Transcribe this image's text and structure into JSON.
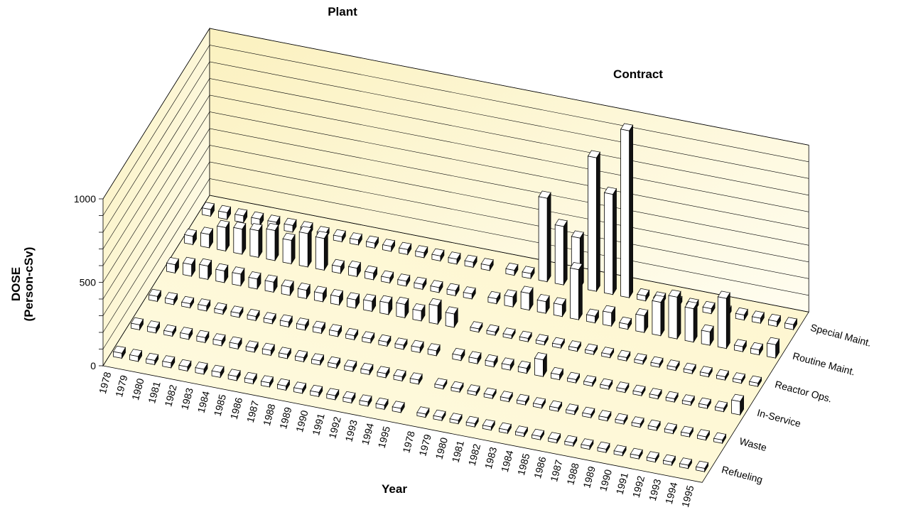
{
  "chart_data": {
    "type": "bar3d",
    "ylabel": [
      "DOSE",
      "(Person-cSv)"
    ],
    "xlabel": "Year",
    "ylim": [
      0,
      1000
    ],
    "yticks": [
      0,
      500,
      1000
    ],
    "minor_yticks": [
      100,
      200,
      300,
      400,
      600,
      700,
      800,
      900
    ],
    "grid": true,
    "categories": [
      "1978",
      "1979",
      "1980",
      "1981",
      "1982",
      "1983",
      "1984",
      "1985",
      "1986",
      "1987",
      "1988",
      "1989",
      "1990",
      "1991",
      "1992",
      "1993",
      "1994",
      "1995"
    ],
    "groups": [
      {
        "name": "Plant",
        "series": [
          {
            "name": "Refueling",
            "values": [
              30,
              30,
              25,
              30,
              25,
              30,
              30,
              25,
              25,
              25,
              25,
              25,
              25,
              25,
              25,
              25,
              25,
              25
            ]
          },
          {
            "name": "Waste",
            "values": [
              30,
              30,
              25,
              30,
              30,
              30,
              30,
              25,
              30,
              25,
              25,
              25,
              25,
              25,
              25,
              25,
              25,
              25
            ]
          },
          {
            "name": "In-Service",
            "values": [
              30,
              30,
              25,
              30,
              25,
              25,
              25,
              25,
              30,
              30,
              30,
              30,
              25,
              25,
              25,
              25,
              30,
              30
            ]
          },
          {
            "name": "Reactor Ops.",
            "values": [
              50,
              70,
              80,
              70,
              70,
              60,
              60,
              50,
              50,
              50,
              50,
              50,
              60,
              70,
              80,
              60,
              110,
              80
            ]
          },
          {
            "name": "Routine Maint.",
            "values": [
              50,
              80,
              140,
              150,
              160,
              180,
              140,
              200,
              190,
              40,
              50,
              40,
              30,
              30,
              30,
              30,
              30,
              30
            ]
          },
          {
            "name": "Special Maint.",
            "values": [
              40,
              40,
              40,
              40,
              40,
              40,
              40,
              30,
              30,
              30,
              30,
              30,
              30,
              30,
              30,
              30,
              30,
              30
            ]
          }
        ]
      },
      {
        "name": "Contract",
        "series": [
          {
            "name": "Refueling",
            "values": [
              20,
              20,
              20,
              20,
              20,
              20,
              20,
              20,
              20,
              20,
              20,
              20,
              20,
              20,
              20,
              20,
              20,
              20
            ]
          },
          {
            "name": "Waste",
            "values": [
              20,
              20,
              20,
              20,
              20,
              20,
              20,
              20,
              20,
              20,
              20,
              20,
              20,
              20,
              20,
              20,
              20,
              20
            ]
          },
          {
            "name": "In-Service",
            "values": [
              30,
              30,
              30,
              30,
              30,
              100,
              30,
              20,
              20,
              20,
              20,
              20,
              20,
              20,
              20,
              20,
              20,
              80
            ]
          },
          {
            "name": "Reactor Ops.",
            "values": [
              20,
              20,
              20,
              20,
              20,
              20,
              20,
              20,
              20,
              20,
              20,
              20,
              20,
              20,
              20,
              20,
              20,
              20
            ]
          },
          {
            "name": "Routine Maint.",
            "values": [
              30,
              60,
              100,
              70,
              70,
              300,
              40,
              80,
              30,
              100,
              200,
              250,
              200,
              80,
              300,
              30,
              30,
              80
            ]
          },
          {
            "name": "Special Maint.",
            "values": [
              30,
              30,
              500,
              350,
              300,
              800,
              600,
              1000,
              30,
              30,
              30,
              30,
              30,
              30,
              30,
              30,
              30,
              30
            ]
          }
        ]
      }
    ]
  }
}
